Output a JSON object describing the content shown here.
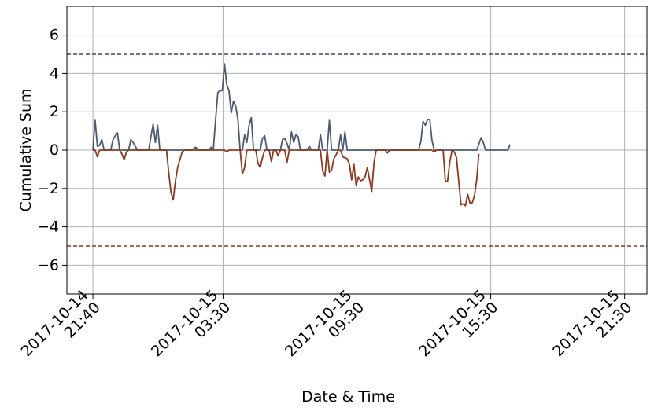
{
  "chart_data": {
    "type": "line",
    "title": "",
    "xlabel": "Date & Time",
    "ylabel": "Cumulative Sum",
    "x_tick_labels": [
      [
        "2017-10-14",
        "21:40"
      ],
      [
        "2017-10-15",
        "03:30"
      ],
      [
        "2017-10-15",
        "09:30"
      ],
      [
        "2017-10-15",
        "15:30"
      ],
      [
        "2017-10-15",
        "21:30"
      ]
    ],
    "x_ticks": [
      "2017-10-14 21:40",
      "2017-10-15 03:30",
      "2017-10-15 09:30",
      "2017-10-15 15:30",
      "2017-10-15 21:30"
    ],
    "y_tick_labels": [
      "−6",
      "−4",
      "−2",
      "0",
      "2",
      "4",
      "6"
    ],
    "y_ticks": [
      -6,
      -4,
      -2,
      0,
      2,
      4,
      6
    ],
    "xlim": [
      "2017-10-14 20:30",
      "2017-10-15 22:30"
    ],
    "ylim": [
      -7.5,
      7.5
    ],
    "grid": true,
    "thresholds": [
      {
        "value": 5,
        "color": "#3b4a60",
        "style": "dashed"
      },
      {
        "value": -5,
        "color": "#8b3a1f",
        "style": "dashed"
      }
    ],
    "series": [
      {
        "color": "#4b5a70",
        "x_start": "2017-10-14 21:40",
        "interval_minutes": 6,
        "values": [
          0,
          1.55,
          0.2,
          0.25,
          0.55,
          0.0,
          0.0,
          0.0,
          0.0,
          0.55,
          0.75,
          0.9,
          0.0,
          0.0,
          0.0,
          0.0,
          0.0,
          0.55,
          0.4,
          0.2,
          0.0,
          0.0,
          0.0,
          0.0,
          0.0,
          0.0,
          0.7,
          1.35,
          0.4,
          1.3,
          0.0,
          0.0,
          0.0,
          0.0,
          0.0,
          0.0,
          0.0,
          0.0,
          0.0,
          0.0,
          0.0,
          0.0,
          0.0,
          0.0,
          0.0,
          0.05,
          0.15,
          0.05,
          0.0,
          0.0,
          0.0,
          0.0,
          0.0,
          0.15,
          0.05,
          1.6,
          3.0,
          3.1,
          3.1,
          4.5,
          3.4,
          3.1,
          1.95,
          2.55,
          2.3,
          1.6,
          0.0,
          0.0,
          0.8,
          0.4,
          1.3,
          1.7,
          0.0,
          0.0,
          0.0,
          0.0,
          0.6,
          0.75,
          0.0,
          0.0,
          0.0,
          0.0,
          0.0,
          0.0,
          0.0,
          0.55,
          0.6,
          0.35,
          0.0,
          0.95,
          0.4,
          0.8,
          0.7,
          0.0,
          0.0,
          0.0,
          0.0,
          0.2,
          0.0,
          0.0,
          0.0,
          0.0,
          0.8,
          0.0,
          0.0,
          0.0,
          1.55,
          0.0,
          0.0,
          0.0,
          0.0,
          0.8,
          0.0,
          0.95,
          0.0,
          0.0,
          0.0,
          0.0,
          0.0,
          0.0,
          0.0,
          0.0,
          0.0,
          0.0,
          0.0,
          0.0,
          0.0,
          0.0,
          0.0,
          0.0,
          0.0,
          0.0,
          0.0,
          0.0,
          0.0,
          0.0,
          0.0,
          0.0,
          0.0,
          0.0,
          0.0,
          0.0,
          0.0,
          0.0,
          0.0,
          0.0,
          0.0,
          0.45,
          1.5,
          1.3,
          1.6,
          1.6,
          0.5,
          0.0,
          0.0,
          0.0,
          0.0,
          0.0,
          0.0,
          0.0,
          0.0,
          0.0,
          0.0,
          0.0,
          0.0,
          0.0,
          0.0,
          0.0,
          0.0,
          0.0,
          0.0,
          0.0,
          0.0,
          0.3,
          0.65,
          0.4,
          0.0,
          0.0,
          0.0,
          0.0,
          0.0,
          0.0,
          0.0,
          0.0,
          0.0,
          0.0,
          0.0,
          0.3
        ]
      },
      {
        "color": "#8b3a1f",
        "x_start": "2017-10-14 21:40",
        "interval_minutes": 6,
        "values": [
          0,
          0,
          -0.35,
          0,
          0,
          0,
          0,
          0,
          0,
          0,
          0,
          0,
          0,
          -0.2,
          -0.5,
          -0.1,
          0,
          0,
          0,
          0,
          0,
          0,
          0,
          0,
          0,
          0,
          0,
          0,
          0,
          0,
          0,
          0,
          0,
          0,
          -1.2,
          -2.2,
          -2.6,
          -1.6,
          -0.9,
          -0.5,
          -0.1,
          0,
          0,
          0,
          0,
          0,
          0,
          0,
          0,
          0,
          0,
          0,
          0,
          0,
          0,
          0,
          0,
          0,
          0,
          0,
          -0.1,
          0,
          0,
          0,
          0,
          0,
          0,
          -1.25,
          -0.9,
          0,
          0,
          0,
          0,
          0,
          -0.7,
          -0.9,
          -0.4,
          0,
          0,
          0,
          -0.6,
          0,
          0,
          -0.3,
          0,
          0,
          0,
          -0.65,
          0,
          0,
          0,
          0,
          0,
          0,
          0,
          0,
          0,
          0,
          0,
          0,
          0,
          0,
          0,
          -1.1,
          -1.35,
          0,
          -1.15,
          -1.05,
          -0.45,
          -0.25,
          0,
          0,
          -0.35,
          -0.4,
          -0.45,
          -0.75,
          -1.55,
          -0.75,
          -1.85,
          -1.4,
          -1.6,
          -1.55,
          -1.4,
          -0.9,
          -1.55,
          -2.15,
          -0.65,
          0,
          0,
          0,
          0,
          0,
          -0.15,
          0,
          0,
          0,
          0,
          0,
          0,
          0,
          0,
          0,
          0,
          0,
          0,
          0,
          0,
          0,
          0,
          0,
          0,
          0,
          0,
          -0.1,
          0,
          0,
          0,
          0,
          -1.65,
          -1.6,
          -0.6,
          0,
          -0.1,
          -0.4,
          -1.65,
          -2.85,
          -2.8,
          -2.9,
          -2.3,
          -2.75,
          -2.75,
          -2.4,
          -1.6,
          -0.2
        ]
      }
    ]
  }
}
